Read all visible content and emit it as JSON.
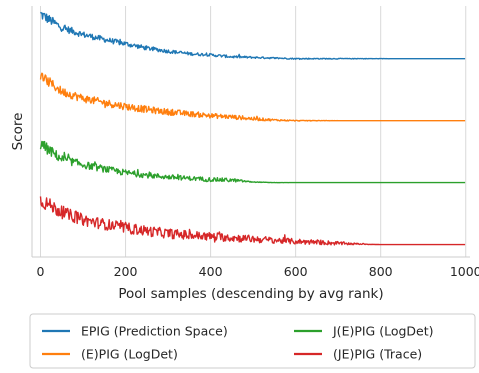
{
  "chart_data": {
    "type": "line",
    "xlabel": "Pool samples (descending by avg rank)",
    "ylabel": "Score",
    "xlim": [
      -20,
      1010
    ],
    "xticks": [
      0,
      200,
      400,
      600,
      800,
      1000
    ],
    "x_tick_labels": [
      "0",
      "200",
      "400",
      "600",
      "800",
      "1000"
    ],
    "grid": "vertical",
    "y_tick_labels": "none",
    "legend": {
      "placement": "bottom-outside",
      "columns": 2
    },
    "series": [
      {
        "name": "EPIG (Prediction Space)",
        "color": "#1f77b4",
        "x": [
          0,
          50,
          100,
          150,
          200,
          250,
          300,
          350,
          400,
          450,
          500,
          550,
          600,
          650,
          700,
          750,
          800,
          850,
          900,
          950,
          1000
        ],
        "values": [
          3.72,
          3.5,
          3.39,
          3.31,
          3.24,
          3.17,
          3.12,
          3.08,
          3.06,
          3.03,
          3.02,
          3.01,
          3.0,
          3.0,
          3.0,
          3.0,
          3.0,
          3.0,
          3.0,
          3.0,
          3.0
        ],
        "noise": [
          0.09,
          0.06,
          0.05,
          0.045,
          0.04,
          0.035,
          0.03,
          0.025,
          0.022,
          0.02,
          0.015,
          0.012,
          0.01,
          0.008,
          0.006,
          0.004,
          0.002,
          0.0,
          0.0,
          0.0,
          0.0
        ]
      },
      {
        "name": "(E)PIG (LogDet)",
        "color": "#ff7f0e",
        "x": [
          0,
          50,
          100,
          150,
          200,
          250,
          300,
          350,
          400,
          450,
          500,
          550,
          600,
          650,
          700,
          750,
          800,
          850,
          900,
          950,
          1000
        ],
        "values": [
          2.72,
          2.47,
          2.36,
          2.29,
          2.23,
          2.18,
          2.14,
          2.11,
          2.08,
          2.06,
          2.03,
          2.01,
          2.0,
          2.0,
          2.0,
          2.0,
          2.0,
          2.0,
          2.0,
          2.0,
          2.0
        ],
        "noise": [
          0.09,
          0.07,
          0.065,
          0.06,
          0.06,
          0.055,
          0.05,
          0.045,
          0.04,
          0.035,
          0.03,
          0.015,
          0.008,
          0.004,
          0.0,
          0.0,
          0.0,
          0.0,
          0.0,
          0.0,
          0.0
        ]
      },
      {
        "name": "J(E)PIG (LogDet)",
        "color": "#2ca02c",
        "x": [
          0,
          50,
          100,
          150,
          200,
          250,
          300,
          350,
          400,
          450,
          500,
          550,
          600,
          650,
          700,
          750,
          800,
          850,
          900,
          950,
          1000
        ],
        "values": [
          1.62,
          1.38,
          1.29,
          1.22,
          1.16,
          1.12,
          1.09,
          1.07,
          1.05,
          1.04,
          1.01,
          1.0,
          1.0,
          1.0,
          1.0,
          1.0,
          1.0,
          1.0,
          1.0,
          1.0,
          1.0
        ],
        "noise": [
          0.1,
          0.07,
          0.06,
          0.055,
          0.05,
          0.045,
          0.04,
          0.035,
          0.035,
          0.03,
          0.005,
          0.002,
          0.0,
          0.0,
          0.0,
          0.0,
          0.0,
          0.0,
          0.0,
          0.0,
          0.0
        ]
      },
      {
        "name": "(JE)PIG (Trace)",
        "color": "#d62728",
        "x": [
          0,
          50,
          100,
          150,
          200,
          250,
          300,
          350,
          400,
          450,
          500,
          550,
          600,
          650,
          700,
          750,
          800,
          850,
          900,
          950,
          1000
        ],
        "values": [
          0.72,
          0.52,
          0.4,
          0.33,
          0.27,
          0.22,
          0.18,
          0.15,
          0.13,
          0.11,
          0.09,
          0.07,
          0.05,
          0.04,
          0.02,
          0.01,
          0.0,
          0.0,
          0.0,
          0.0,
          0.0
        ],
        "noise": [
          0.12,
          0.1,
          0.095,
          0.09,
          0.09,
          0.085,
          0.08,
          0.075,
          0.07,
          0.065,
          0.06,
          0.05,
          0.045,
          0.04,
          0.03,
          0.01,
          0.0,
          0.0,
          0.0,
          0.0,
          0.0
        ]
      }
    ]
  }
}
